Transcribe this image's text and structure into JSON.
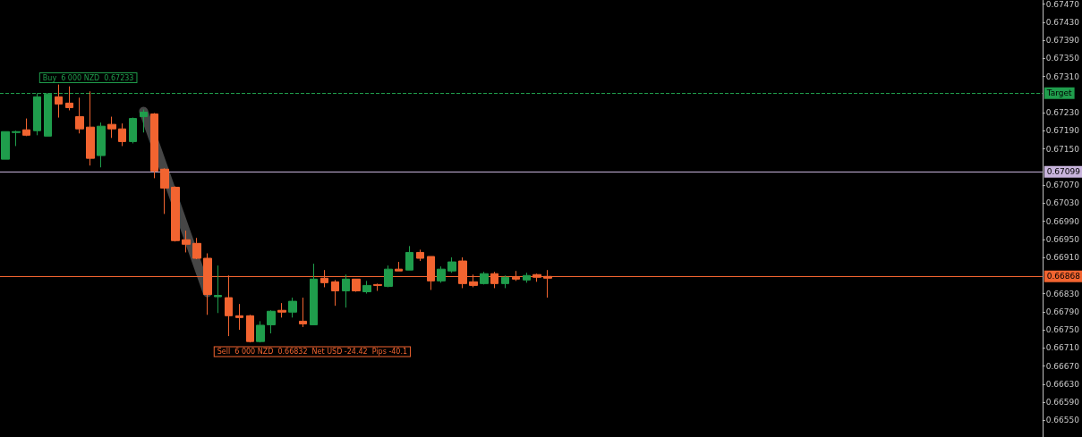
{
  "chart_data": {
    "type": "candlestick",
    "categories": [
      null,
      null,
      null,
      null,
      null,
      null,
      null,
      null,
      null,
      null,
      null,
      null,
      null,
      null,
      null,
      null,
      null,
      null,
      null,
      null,
      null,
      null,
      null,
      null,
      null,
      null,
      null,
      null,
      null,
      null,
      null,
      null,
      null,
      null,
      null,
      null,
      null,
      null,
      null,
      null,
      null,
      null,
      null,
      null,
      null,
      null,
      null,
      null,
      null,
      null,
      null,
      null,
      null,
      null,
      null,
      null,
      null,
      null,
      null,
      null,
      null,
      null,
      null,
      null,
      null,
      null,
      null,
      null,
      null,
      null,
      null,
      null,
      null,
      null,
      null,
      null,
      null,
      null,
      null,
      null,
      null,
      null,
      null,
      null,
      null,
      null,
      null,
      null,
      null,
      null,
      null,
      null,
      null,
      null,
      null,
      null,
      null,
      null
    ],
    "ohlc": [
      [
        0.67127,
        0.67188,
        0.67127,
        0.67188
      ],
      [
        0.67186,
        0.6719,
        0.67156,
        0.67188
      ],
      [
        0.67192,
        0.67217,
        0.67178,
        0.6718
      ],
      [
        0.6719,
        0.67273,
        0.6718,
        0.67265
      ],
      [
        0.67178,
        0.67273,
        0.67178,
        0.67271
      ],
      [
        0.67265,
        0.67292,
        0.67219,
        0.67249
      ],
      [
        0.67251,
        0.67288,
        0.67235,
        0.67241
      ],
      [
        0.67221,
        0.67263,
        0.67184,
        0.67194
      ],
      [
        0.67198,
        0.67277,
        0.67113,
        0.67129
      ],
      [
        0.67135,
        0.67208,
        0.67109,
        0.672
      ],
      [
        0.67204,
        0.67221,
        0.67174,
        0.67194
      ],
      [
        0.67194,
        0.67206,
        0.67156,
        0.67166
      ],
      [
        0.67166,
        0.67219,
        0.67162,
        0.67217
      ],
      [
        0.67221,
        0.67237,
        0.67186,
        0.67231
      ],
      [
        0.67227,
        0.67229,
        0.67085,
        0.67101
      ],
      [
        0.67105,
        0.67107,
        0.67006,
        0.67063
      ],
      [
        0.67065,
        0.67067,
        0.66945,
        0.66947
      ],
      [
        0.66949,
        0.66969,
        0.66921,
        0.66939
      ],
      [
        0.66941,
        0.66953,
        0.66906,
        0.66908
      ],
      [
        0.66908,
        0.66919,
        0.66783,
        0.66828
      ],
      [
        0.66823,
        0.66892,
        0.66787,
        0.66826
      ],
      [
        0.66821,
        0.6687,
        0.66736,
        0.66781
      ],
      [
        0.66781,
        0.66807,
        0.6675,
        0.66777
      ],
      [
        0.66781,
        0.66783,
        0.66722,
        0.66724
      ],
      [
        0.66724,
        0.66769,
        0.66722,
        0.6676
      ],
      [
        0.66761,
        0.66793,
        0.66742,
        0.66791
      ],
      [
        0.66793,
        0.66809,
        0.66777,
        0.66789
      ],
      [
        0.66789,
        0.66821,
        0.66777,
        0.66813
      ],
      [
        0.66769,
        0.66821,
        0.66756,
        0.66763
      ],
      [
        0.66761,
        0.66896,
        0.66761,
        0.66862
      ],
      [
        0.66864,
        0.66882,
        0.66844,
        0.66854
      ],
      [
        0.66856,
        0.6686,
        0.66803,
        0.66836
      ],
      [
        0.66836,
        0.66872,
        0.66799,
        0.66862
      ],
      [
        0.66862,
        0.66862,
        0.66834,
        0.66836
      ],
      [
        0.66834,
        0.66858,
        0.6683,
        0.66848
      ],
      [
        0.6685,
        0.66852,
        0.66836,
        0.66848
      ],
      [
        0.66846,
        0.66892,
        0.66844,
        0.66884
      ],
      [
        0.66884,
        0.669,
        0.6688,
        0.6688
      ],
      [
        0.66882,
        0.66935,
        0.66882,
        0.66921
      ],
      [
        0.66921,
        0.66927,
        0.66902,
        0.66908
      ],
      [
        0.66912,
        0.66912,
        0.66838,
        0.66858
      ],
      [
        0.66858,
        0.6689,
        0.66854,
        0.66884
      ],
      [
        0.6688,
        0.6691,
        0.66876,
        0.669
      ],
      [
        0.66902,
        0.6691,
        0.66842,
        0.66852
      ],
      [
        0.66856,
        0.66872,
        0.66844,
        0.66848
      ],
      [
        0.66852,
        0.66878,
        0.6685,
        0.66874
      ],
      [
        0.66874,
        0.66878,
        0.66842,
        0.66852
      ],
      [
        0.66852,
        0.6687,
        0.66842,
        0.66866
      ],
      [
        0.66866,
        0.6688,
        0.66858,
        0.66862
      ],
      [
        0.6686,
        0.66876,
        0.66854,
        0.6687
      ],
      [
        0.66872,
        0.66874,
        0.66856,
        0.66866
      ],
      [
        0.66868,
        0.66882,
        0.66821,
        0.66864
      ],
      null,
      null,
      null,
      null,
      null,
      null,
      null,
      null,
      null,
      null,
      null,
      null,
      null,
      null,
      null,
      null,
      null,
      null,
      null,
      null,
      null,
      null,
      null,
      null,
      null,
      null,
      null,
      null,
      null,
      null,
      null,
      null,
      null,
      null,
      null,
      null,
      null,
      null,
      null,
      null,
      null,
      null,
      null,
      null,
      null,
      null
    ],
    "colors": [
      "#1f9d4c",
      "#1f9d4c",
      "#f26430",
      "#1f9d4c",
      "#1f9d4c",
      "#f26430",
      "#f26430",
      "#f26430",
      "#f26430",
      "#1f9d4c",
      "#f26430",
      "#f26430",
      "#1f9d4c",
      "#1f9d4c",
      "#f26430",
      "#f26430",
      "#f26430",
      "#f26430",
      "#f26430",
      "#f26430",
      "#1f9d4c",
      "#f26430",
      "#f26430",
      "#f26430",
      "#1f9d4c",
      "#1f9d4c",
      "#f26430",
      "#1f9d4c",
      "#f26430",
      "#1f9d4c",
      "#f26430",
      "#f26430",
      "#1f9d4c",
      "#f26430",
      "#1f9d4c",
      "#f26430",
      "#1f9d4c",
      "#f26430",
      "#1f9d4c",
      "#f26430",
      "#f26430",
      "#1f9d4c",
      "#1f9d4c",
      "#f26430",
      "#f26430",
      "#1f9d4c",
      "#f26430",
      "#1f9d4c",
      "#f26430",
      "#1f9d4c",
      "#f26430",
      "#f26430",
      null,
      null,
      null,
      null,
      null,
      null,
      null,
      null,
      null,
      null,
      null,
      null,
      null,
      null,
      null,
      null,
      null,
      null,
      null,
      null,
      null,
      null,
      null,
      null,
      null,
      null,
      null,
      null,
      null,
      null,
      null,
      null,
      null,
      null,
      null,
      null,
      null,
      null,
      null,
      null,
      null,
      null,
      null,
      null,
      null,
      null
    ],
    "series": [
      {
        "type": "line",
        "color": "#808080",
        "values": [
          null,
          null,
          null,
          null,
          null,
          null,
          null,
          null,
          null,
          null,
          null,
          null,
          null,
          0.67233,
          null,
          null,
          null,
          null,
          null,
          0.66832,
          null,
          null,
          null,
          null,
          null,
          null,
          null,
          null,
          null,
          null,
          null,
          null,
          null,
          null,
          null,
          null,
          null,
          null,
          null,
          null,
          null,
          null,
          null,
          null,
          null,
          null,
          null,
          null,
          null,
          null,
          null,
          null,
          null,
          null,
          null,
          null,
          null,
          null,
          null,
          null,
          null,
          null,
          null,
          null,
          null,
          null,
          null,
          null,
          null,
          null,
          null,
          null,
          null,
          null,
          null,
          null,
          null,
          null,
          null,
          null,
          null,
          null,
          null,
          null,
          null,
          null,
          null,
          null,
          null,
          null,
          null,
          null,
          null,
          null,
          null,
          null,
          null,
          null
        ]
      }
    ],
    "ylim": [
      0.66513,
      0.67478
    ],
    "yticks": [
      {
        "value": 0.6747,
        "label": "0.67470"
      },
      {
        "value": 0.6743,
        "label": "0.67430"
      },
      {
        "value": 0.6739,
        "label": "0.67390"
      },
      {
        "value": 0.6735,
        "label": "0.67350"
      },
      {
        "value": 0.6731,
        "label": "0.67310"
      },
      {
        "value": 0.6723,
        "label": "0.67230"
      },
      {
        "value": 0.6719,
        "label": "0.67190"
      },
      {
        "value": 0.6715,
        "label": "0.67150"
      },
      {
        "value": 0.6707,
        "label": "0.67070"
      },
      {
        "value": 0.6703,
        "label": "0.67030"
      },
      {
        "value": 0.6699,
        "label": "0.66990"
      },
      {
        "value": 0.6695,
        "label": "0.66950"
      },
      {
        "value": 0.6691,
        "label": "0.66910"
      },
      {
        "value": 0.6683,
        "label": "0.66830"
      },
      {
        "value": 0.6679,
        "label": "0.66790"
      },
      {
        "value": 0.6675,
        "label": "0.66750"
      },
      {
        "value": 0.6671,
        "label": "0.66710"
      },
      {
        "value": 0.6667,
        "label": "0.66670"
      },
      {
        "value": 0.6663,
        "label": "0.66630"
      },
      {
        "value": 0.6659,
        "label": "0.66590"
      },
      {
        "value": 0.6655,
        "label": "0.66550"
      }
    ],
    "ref_lines": [
      {
        "axis": "y",
        "value": 0.67273,
        "label": "Target",
        "color": "#1f9d4c",
        "line_style": "dashed"
      },
      {
        "axis": "y",
        "value": 0.67099,
        "label": "0.67099",
        "color": "#c8b4dc",
        "line_style": "solid"
      },
      {
        "axis": "y",
        "value": 0.66868,
        "label": "0.66868",
        "color": "#f26430",
        "line_style": "solid"
      }
    ],
    "annotations": [
      "Buy  6 000 NZD  0.67233",
      "Sell  6 000 NZD  0.66832  Net USD -24.42  Pips -40.1"
    ],
    "grid": false
  }
}
